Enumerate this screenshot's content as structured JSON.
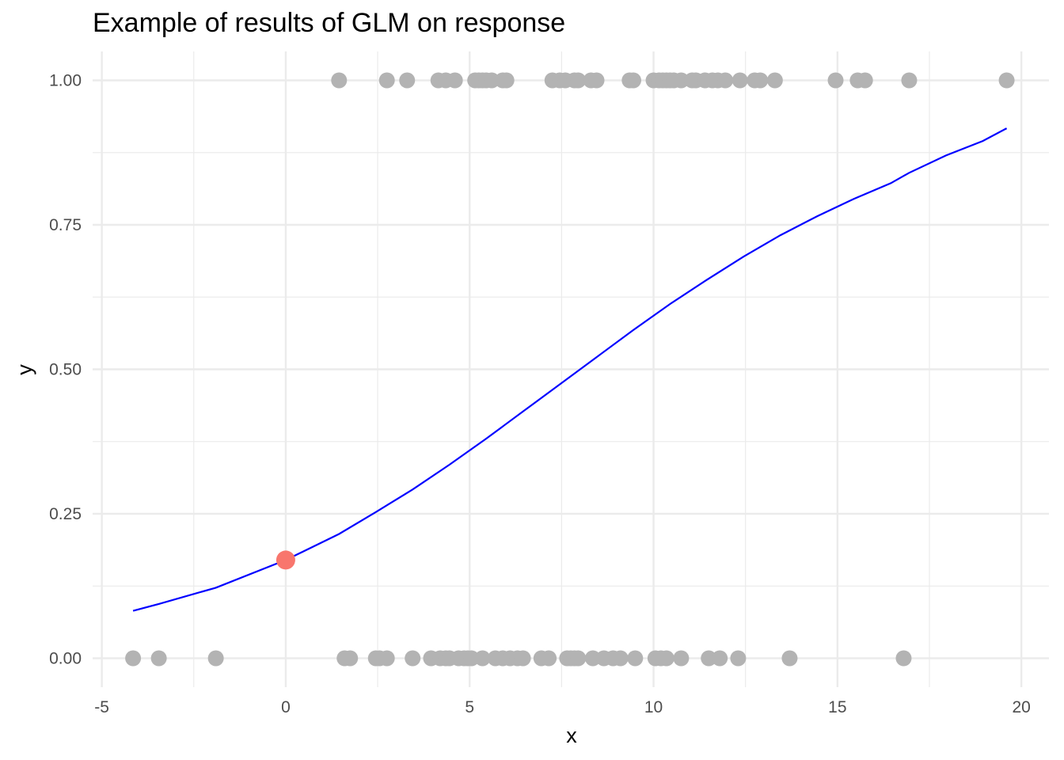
{
  "chart_data": {
    "type": "scatter",
    "title": "Example of results of GLM on response",
    "xlabel": "x",
    "ylabel": "y",
    "xlim": [
      -5.25,
      20.75
    ],
    "ylim": [
      -0.05,
      1.05
    ],
    "xticks": [
      -5,
      0,
      5,
      10,
      15,
      20
    ],
    "xtick_labels": [
      "-5",
      "0",
      "5",
      "10",
      "15",
      "20"
    ],
    "yticks": [
      0,
      0.25,
      0.5,
      0.75,
      1
    ],
    "ytick_labels": [
      "0.00",
      "0.25",
      "0.50",
      "0.75",
      "1.00"
    ],
    "grid": true,
    "legend": "none",
    "colors": {
      "points": "#b3b3b3",
      "curve": "#0000ff",
      "highlight": "#f8766d",
      "grid": "#ebebeb"
    },
    "points_y1": [
      1.45,
      2.75,
      3.3,
      4.15,
      4.35,
      4.6,
      5.15,
      5.25,
      5.35,
      5.45,
      5.6,
      5.9,
      6.0,
      7.25,
      7.45,
      7.6,
      7.85,
      7.95,
      8.3,
      8.45,
      9.35,
      9.45,
      10.0,
      10.15,
      10.25,
      10.35,
      10.45,
      10.55,
      10.75,
      11.05,
      11.15,
      11.4,
      11.6,
      11.75,
      11.95,
      12.35,
      12.75,
      12.9,
      13.3,
      14.95,
      15.55,
      15.75,
      16.95,
      19.6
    ],
    "points_y0": [
      -4.15,
      -3.45,
      -1.9,
      1.6,
      1.75,
      2.45,
      2.55,
      2.75,
      3.45,
      3.95,
      4.2,
      4.35,
      4.45,
      4.7,
      4.85,
      4.95,
      5.05,
      5.35,
      5.7,
      5.9,
      6.1,
      6.3,
      6.45,
      6.95,
      7.15,
      7.65,
      7.75,
      7.85,
      7.95,
      8.35,
      8.65,
      8.9,
      9.1,
      9.5,
      10.05,
      10.2,
      10.35,
      10.75,
      11.5,
      11.8,
      12.3,
      13.7,
      16.8
    ],
    "fitted_curve": {
      "x": [
        -4.15,
        -3.45,
        -1.9,
        0,
        1.45,
        2.45,
        3.45,
        4.45,
        5.45,
        6.45,
        7.45,
        8.45,
        9.45,
        10.45,
        11.45,
        12.45,
        13.45,
        14.45,
        15.45,
        16.45,
        16.95,
        17.95,
        18.95,
        19.6
      ],
      "y": [
        0.082,
        0.094,
        0.122,
        0.17,
        0.215,
        0.253,
        0.292,
        0.335,
        0.38,
        0.427,
        0.474,
        0.521,
        0.568,
        0.613,
        0.655,
        0.695,
        0.732,
        0.765,
        0.795,
        0.822,
        0.84,
        0.87,
        0.895,
        0.917
      ]
    },
    "highlight_point": {
      "x": 0,
      "y": 0.17
    }
  }
}
